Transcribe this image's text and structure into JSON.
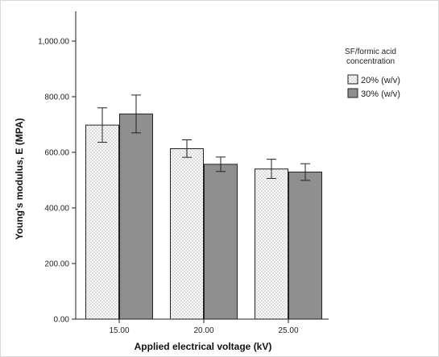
{
  "chart_data": {
    "type": "bar",
    "title": "",
    "xlabel": "Applied electrical voltage (kV)",
    "ylabel": "Young's modulus, E (MPA)",
    "categories": [
      "15.00",
      "20.00",
      "25.00"
    ],
    "ylim": [
      0,
      1000
    ],
    "yticks": [
      "0.00",
      "200.00",
      "400.00",
      "600.00",
      "800.00",
      "1,000.00"
    ],
    "ytick_values": [
      0,
      200,
      400,
      600,
      800,
      1000
    ],
    "series": [
      {
        "name": "20% (w/v)",
        "values": [
          698,
          613,
          540
        ],
        "error_low": [
          636,
          582,
          506
        ],
        "error_high": [
          760,
          645,
          575
        ],
        "color": "#f4f4f4",
        "pattern": "dots"
      },
      {
        "name": "30% (w/v)",
        "values": [
          738,
          557,
          529
        ],
        "error_low": [
          670,
          531,
          499
        ],
        "error_high": [
          806,
          583,
          559
        ],
        "color": "#8f8f8f",
        "pattern": "solid"
      }
    ],
    "legend": {
      "title_lines": [
        "SF/formic acid",
        "concentration"
      ],
      "position": "right"
    },
    "grid": false
  }
}
